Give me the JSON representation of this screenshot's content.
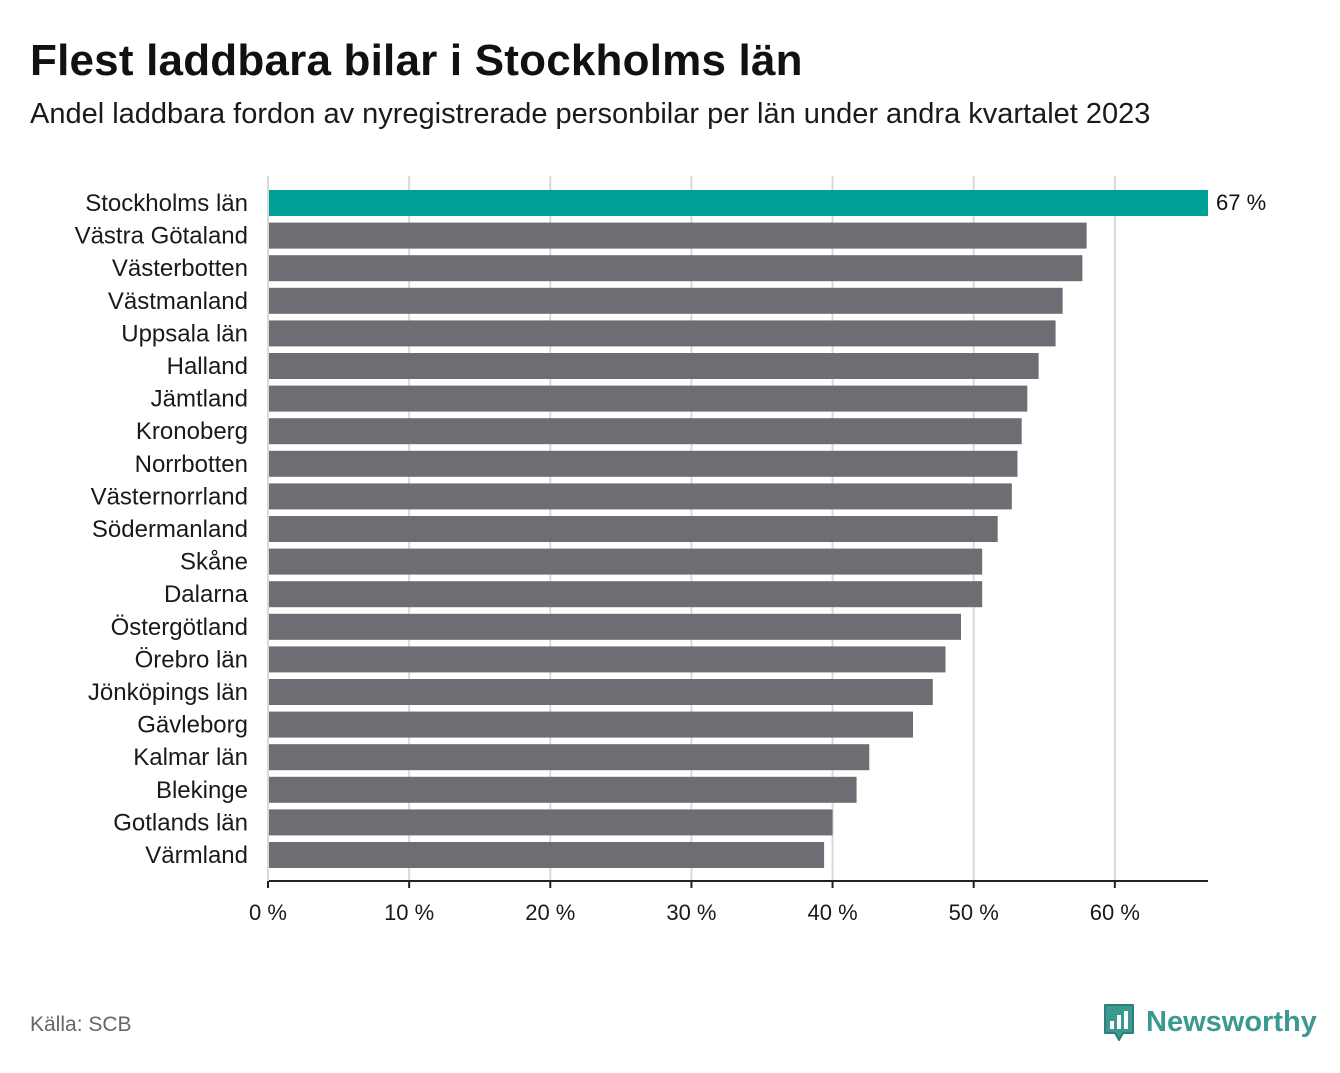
{
  "header": {
    "title": "Flest laddbara bilar i Stockholms län",
    "subtitle": "Andel laddbara fordon av nyregistrerade personbilar per län under andra kvartalet 2023"
  },
  "footer": {
    "source": "Källa: SCB",
    "brand": "Newsworthy",
    "brand_icon": "bar-chart-speech-bubble-icon"
  },
  "colors": {
    "highlight": "#00a096",
    "bar": "#6e6d73",
    "grid": "#d9d9d9",
    "axis": "#222222",
    "brand": "#3a9a8f"
  },
  "chart_data": {
    "type": "bar",
    "orientation": "horizontal",
    "title": "Flest laddbara bilar i Stockholms län",
    "subtitle": "Andel laddbara fordon av nyregistrerade personbilar per län under andra kvartalet 2023",
    "xlabel": "",
    "ylabel": "",
    "xlim": [
      0,
      66.6
    ],
    "ticks": [
      0,
      10,
      20,
      30,
      40,
      50,
      60
    ],
    "tick_labels": [
      "0 %",
      "10 %",
      "20 %",
      "30 %",
      "40 %",
      "50 %",
      "60 %"
    ],
    "grid": true,
    "highlight_index": 0,
    "data_labels": [
      {
        "index": 0,
        "text": "67 %"
      }
    ],
    "categories": [
      "Stockholms län",
      "Västra Götaland",
      "Västerbotten",
      "Västmanland",
      "Uppsala län",
      "Halland",
      "Jämtland",
      "Kronoberg",
      "Norrbotten",
      "Västernorrland",
      "Södermanland",
      "Skåne",
      "Dalarna",
      "Östergötland",
      "Örebro län",
      "Jönköpings län",
      "Gävleborg",
      "Kalmar län",
      "Blekinge",
      "Gotlands län",
      "Värmland"
    ],
    "values": [
      66.6,
      58.0,
      57.7,
      56.3,
      55.8,
      54.6,
      53.8,
      53.4,
      53.1,
      52.7,
      51.7,
      50.6,
      50.6,
      49.1,
      48.0,
      47.1,
      45.7,
      42.6,
      41.7,
      40.0,
      39.4
    ]
  }
}
